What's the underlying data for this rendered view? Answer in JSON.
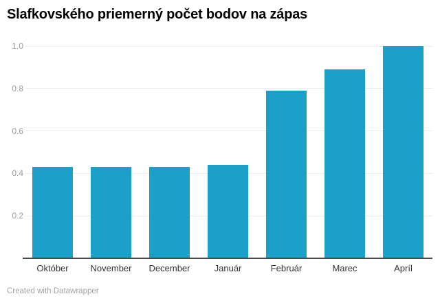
{
  "colors": {
    "background": "#FFFFFF",
    "bar": "#1BA0C9",
    "gridline": "#E9E9E9",
    "tick": "#D6D6D6",
    "axis_line": "#4A4A4A",
    "title": "#000000",
    "y_label": "#9B9B9B",
    "x_label": "#333333",
    "footer_text": "#A3A3A3"
  },
  "footer": {
    "attribution": "Created with Datawrapper"
  },
  "chart_data": {
    "type": "bar",
    "title": "Slafkovského priemerný počet bodov na zápas",
    "categories": [
      "Október",
      "November",
      "December",
      "Január",
      "Február",
      "Marec",
      "Apríl"
    ],
    "values": [
      0.43,
      0.43,
      0.43,
      0.44,
      0.79,
      0.89,
      1.0
    ],
    "xlabel": "",
    "ylabel": "",
    "ylim": [
      0,
      1.0
    ],
    "yticks": [
      0.2,
      0.4,
      0.6,
      0.8,
      1.0
    ],
    "ytick_labels": [
      "0.2",
      "0.4",
      "0.6",
      "0.8",
      "1.0"
    ],
    "grid": true,
    "legend": false,
    "bar_color": "#1BA0C9"
  }
}
